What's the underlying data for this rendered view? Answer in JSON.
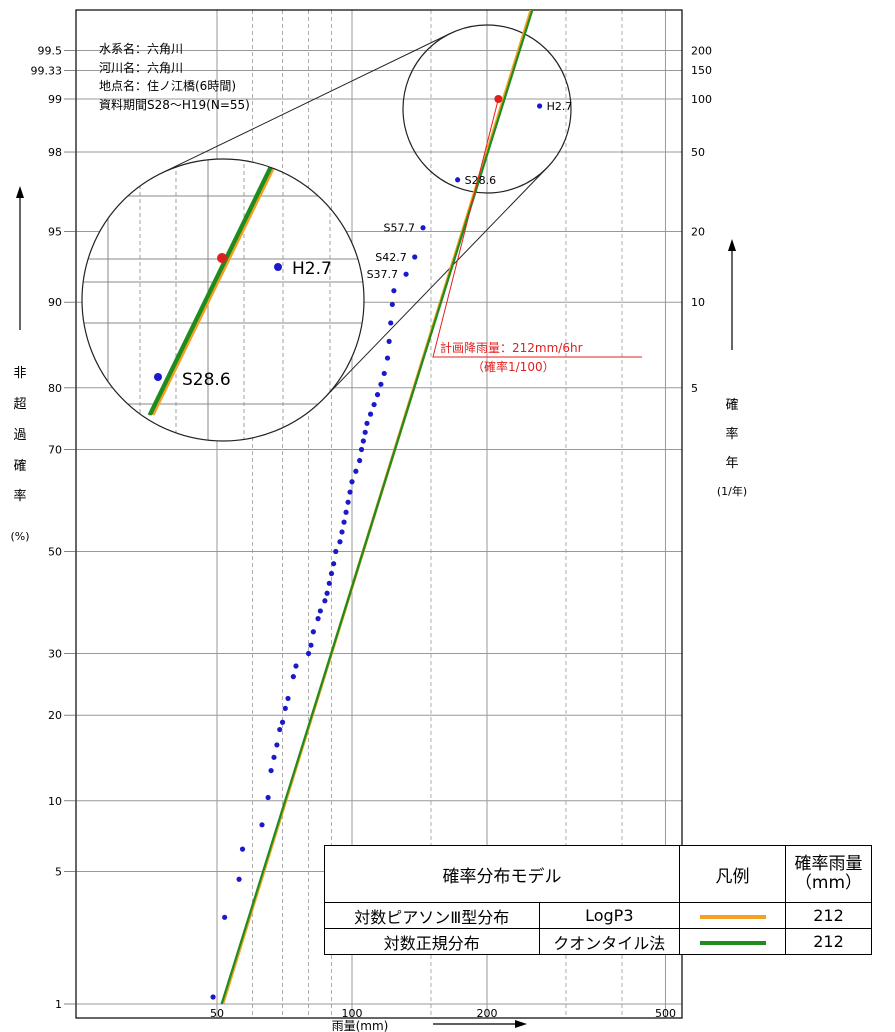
{
  "chart_data": {
    "type": "scatter",
    "scale": "log-normal probability",
    "xlabel": "雨量(mm)",
    "x_ticks": [
      50,
      100,
      200,
      500
    ],
    "x_minor_lines": [
      60,
      70,
      80,
      90,
      150,
      300,
      400
    ],
    "xlim": [
      30,
      500
    ],
    "ylabel_left": [
      "非",
      "超",
      "過",
      "確",
      "率",
      "(%)"
    ],
    "ylabel_right": [
      "確",
      "率",
      "年",
      "(1/年)"
    ],
    "y_left_ticks": [
      "1",
      "5",
      "10",
      "20",
      "30",
      "50",
      "70",
      "80",
      "90",
      "95",
      "98",
      "99",
      "99.33",
      "99.5"
    ],
    "y_right_ticks": [
      "5",
      "10",
      "20",
      "50",
      "100",
      "150",
      "200"
    ],
    "info": [
      "水系名：六角川",
      "河川名：六角川",
      "地点名：住ノ江橋(6時間)",
      "資料期間S28～H19(N=55)"
    ],
    "point_color": "#1a1acc",
    "points": [
      {
        "x": 49,
        "p": 1.1
      },
      {
        "x": 52,
        "p": 3.0
      },
      {
        "x": 56,
        "p": 4.6
      },
      {
        "x": 57,
        "p": 6.3
      },
      {
        "x": 63,
        "p": 8.0
      },
      {
        "x": 65,
        "p": 10.3
      },
      {
        "x": 66,
        "p": 13.0
      },
      {
        "x": 67,
        "p": 14.5
      },
      {
        "x": 68,
        "p": 16.0
      },
      {
        "x": 69,
        "p": 18.0
      },
      {
        "x": 70,
        "p": 19.0
      },
      {
        "x": 71,
        "p": 21.0
      },
      {
        "x": 72,
        "p": 22.5
      },
      {
        "x": 74,
        "p": 26.0
      },
      {
        "x": 75,
        "p": 27.8
      },
      {
        "x": 80,
        "p": 30.0
      },
      {
        "x": 81,
        "p": 31.5
      },
      {
        "x": 82,
        "p": 34.0
      },
      {
        "x": 84,
        "p": 36.5
      },
      {
        "x": 85,
        "p": 38.0
      },
      {
        "x": 87,
        "p": 40.0
      },
      {
        "x": 88,
        "p": 41.5
      },
      {
        "x": 89,
        "p": 43.5
      },
      {
        "x": 90,
        "p": 45.5
      },
      {
        "x": 91,
        "p": 47.5
      },
      {
        "x": 92,
        "p": 50.0
      },
      {
        "x": 94,
        "p": 52.0
      },
      {
        "x": 95,
        "p": 54.0
      },
      {
        "x": 96,
        "p": 56.0
      },
      {
        "x": 97,
        "p": 58.0
      },
      {
        "x": 98,
        "p": 60.0
      },
      {
        "x": 99,
        "p": 62.0
      },
      {
        "x": 100,
        "p": 64.0
      },
      {
        "x": 102,
        "p": 66.0
      },
      {
        "x": 104,
        "p": 68.0
      },
      {
        "x": 105,
        "p": 70.0
      },
      {
        "x": 106,
        "p": 71.5
      },
      {
        "x": 107,
        "p": 73.0
      },
      {
        "x": 108,
        "p": 74.5
      },
      {
        "x": 110,
        "p": 76.0
      },
      {
        "x": 112,
        "p": 77.5
      },
      {
        "x": 114,
        "p": 79.0
      },
      {
        "x": 116,
        "p": 80.5
      },
      {
        "x": 118,
        "p": 82.0
      },
      {
        "x": 120,
        "p": 84.0
      },
      {
        "x": 121,
        "p": 86.0
      },
      {
        "x": 122,
        "p": 88.0
      },
      {
        "x": 123,
        "p": 89.8
      },
      {
        "x": 124,
        "p": 91.0
      },
      {
        "x": 132,
        "p": 92.3,
        "label": "S37.7"
      },
      {
        "x": 138,
        "p": 93.5,
        "label": "S42.7"
      },
      {
        "x": 144,
        "p": 95.2,
        "label": "S57.7"
      },
      {
        "x": 172,
        "p": 97.2,
        "label": "S28.6"
      },
      {
        "x": 262,
        "p": 98.9,
        "label": "H2.7"
      }
    ],
    "lines": [
      {
        "key": "logp3",
        "color": "#f5a020",
        "p1": 1,
        "x1": 51.5,
        "p2": 99.99,
        "x2": 335
      },
      {
        "key": "lognormal",
        "color": "#1e8c1e",
        "p1": 1,
        "x1": 51.2,
        "p2": 99.99,
        "x2": 338
      }
    ],
    "plan_point": {
      "x": 212,
      "p": 99.0,
      "color": "#e02020"
    },
    "annotation": {
      "line1": "計画降雨量：212mm/6hr",
      "line2": "（確率1/100）",
      "color": "#e02020"
    },
    "zoom_labels": {
      "h27": "H2.7",
      "s286": "S28.6"
    }
  },
  "legend": {
    "header_model": "確率分布モデル",
    "header_legend": "凡例",
    "header_rain": [
      "確率雨量",
      "（mm）"
    ],
    "rows": [
      {
        "model": "対数ピアソンⅢ型分布",
        "method": "LogP3",
        "value": "212",
        "color": "#f5a020"
      },
      {
        "model": "対数正規分布",
        "method": "クオンタイル法",
        "value": "212",
        "color": "#1e8c1e"
      }
    ]
  }
}
